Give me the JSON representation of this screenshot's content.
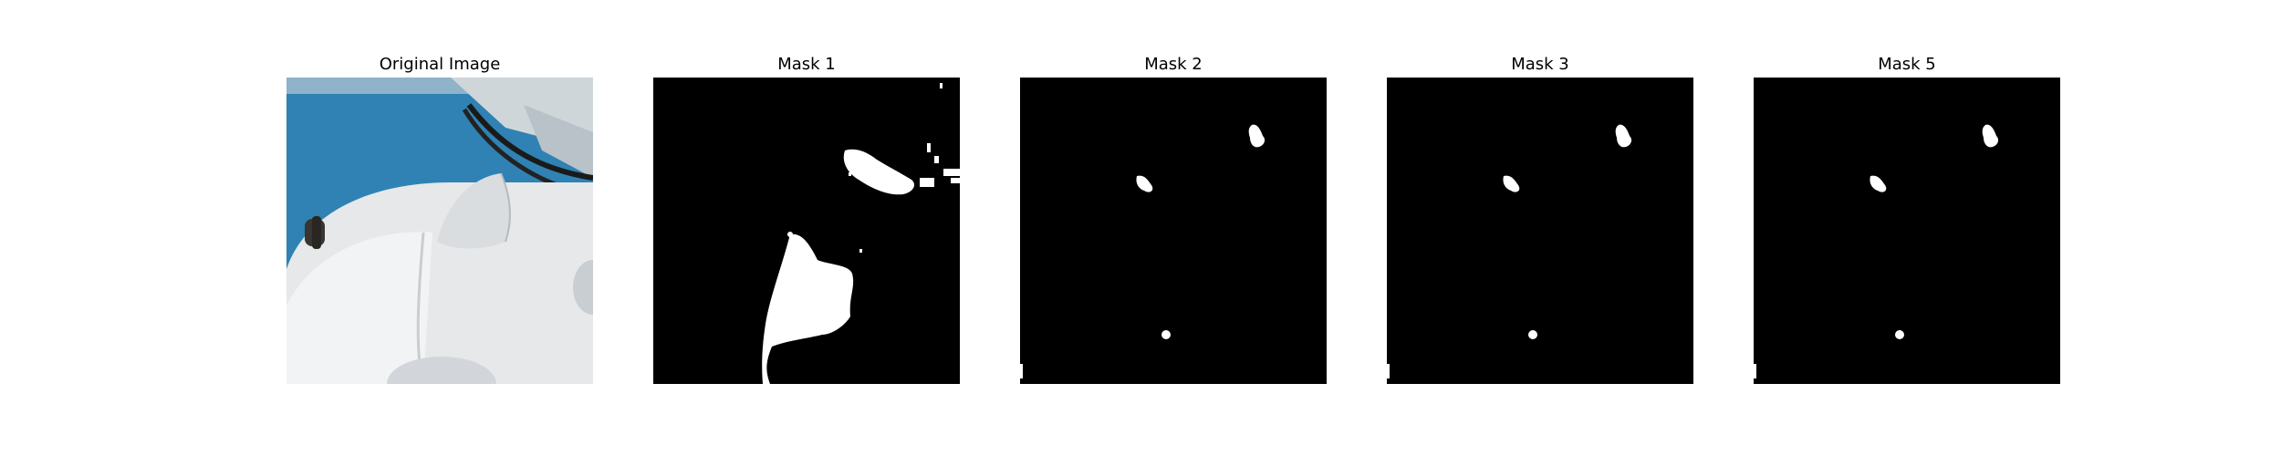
{
  "figure": {
    "panels": [
      {
        "title": "Original Image",
        "kind": "photo"
      },
      {
        "title": "Mask 1",
        "kind": "mask"
      },
      {
        "title": "Mask 2",
        "kind": "mask"
      },
      {
        "title": "Mask 3",
        "kind": "mask"
      },
      {
        "title": "Mask 5",
        "kind": "mask"
      }
    ]
  },
  "colors": {
    "background": "#ffffff",
    "mask_background": "#000000",
    "mask_foreground": "#ffffff",
    "sky_blue": "#2f82b3",
    "white_surface": "#e9ecef"
  }
}
